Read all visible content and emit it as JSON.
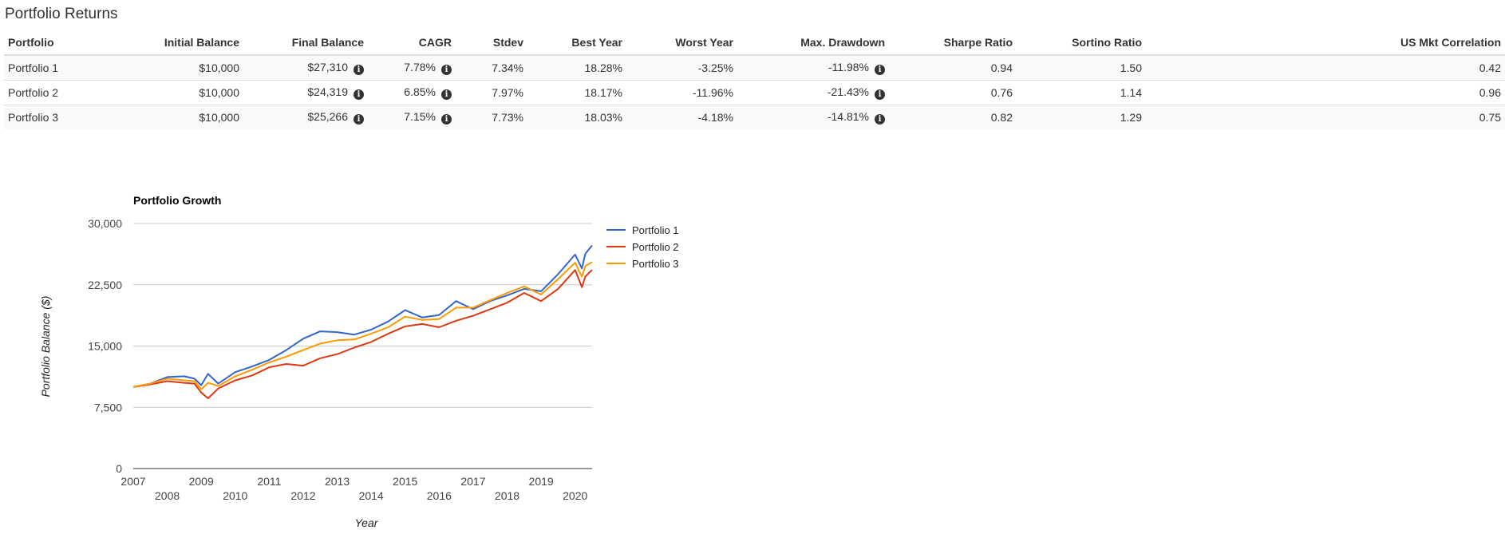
{
  "section_title": "Portfolio Returns",
  "columns": [
    "Portfolio",
    "Initial Balance",
    "Final Balance",
    "CAGR",
    "Stdev",
    "Best Year",
    "Worst Year",
    "Max. Drawdown",
    "Sharpe Ratio",
    "Sortino Ratio",
    "US Mkt Correlation"
  ],
  "rows": [
    {
      "portfolio": "Portfolio 1",
      "initial_balance": "$10,000",
      "final_balance": "$27,310",
      "cagr": "7.78%",
      "stdev": "7.34%",
      "best_year": "18.28%",
      "worst_year": "-3.25%",
      "max_drawdown": "-11.98%",
      "sharpe": "0.94",
      "sortino": "1.50",
      "us_mkt_corr": "0.42"
    },
    {
      "portfolio": "Portfolio 2",
      "initial_balance": "$10,000",
      "final_balance": "$24,319",
      "cagr": "6.85%",
      "stdev": "7.97%",
      "best_year": "18.17%",
      "worst_year": "-11.96%",
      "max_drawdown": "-21.43%",
      "sharpe": "0.76",
      "sortino": "1.14",
      "us_mkt_corr": "0.96"
    },
    {
      "portfolio": "Portfolio 3",
      "initial_balance": "$10,000",
      "final_balance": "$25,266",
      "cagr": "7.15%",
      "stdev": "7.73%",
      "best_year": "18.03%",
      "worst_year": "-4.18%",
      "max_drawdown": "-14.81%",
      "sharpe": "0.82",
      "sortino": "1.29",
      "us_mkt_corr": "0.75"
    }
  ],
  "icons": {
    "info": "info-circle-icon"
  },
  "chart_data": {
    "type": "line",
    "title": "Portfolio Growth",
    "xlabel": "Year",
    "ylabel": "Portfolio Balance ($)",
    "xlim": [
      2007,
      2020.5
    ],
    "ylim": [
      0,
      30000
    ],
    "yticks": [
      0,
      7500,
      15000,
      22500,
      30000
    ],
    "ytick_labels": [
      "0",
      "7,500",
      "15,000",
      "22,500",
      "30,000"
    ],
    "xticks": [
      2007,
      2008,
      2009,
      2010,
      2011,
      2012,
      2013,
      2014,
      2015,
      2016,
      2017,
      2018,
      2019,
      2020
    ],
    "xtick_labels": [
      "2007",
      "2008",
      "2009",
      "2010",
      "2011",
      "2012",
      "2013",
      "2014",
      "2015",
      "2016",
      "2017",
      "2018",
      "2019",
      "2020"
    ],
    "grid": true,
    "legend": "right",
    "series": [
      {
        "name": "Portfolio 1",
        "color": "#3366cc",
        "x": [
          2007.0,
          2007.5,
          2008.0,
          2008.5,
          2008.8,
          2009.0,
          2009.2,
          2009.5,
          2010.0,
          2010.5,
          2011.0,
          2011.5,
          2012.0,
          2012.5,
          2013.0,
          2013.5,
          2014.0,
          2014.5,
          2015.0,
          2015.5,
          2016.0,
          2016.5,
          2017.0,
          2017.5,
          2018.0,
          2018.5,
          2019.0,
          2019.5,
          2020.0,
          2020.2,
          2020.3,
          2020.5
        ],
        "y": [
          10000,
          10400,
          11200,
          11300,
          11000,
          10200,
          11600,
          10400,
          11800,
          12500,
          13300,
          14500,
          15900,
          16800,
          16700,
          16400,
          17000,
          18000,
          19400,
          18500,
          18800,
          20500,
          19500,
          20500,
          21200,
          22000,
          21700,
          23800,
          26200,
          24500,
          26300,
          27310
        ]
      },
      {
        "name": "Portfolio 2",
        "color": "#dc3912",
        "x": [
          2007.0,
          2007.5,
          2008.0,
          2008.5,
          2008.8,
          2009.0,
          2009.2,
          2009.5,
          2010.0,
          2010.5,
          2011.0,
          2011.5,
          2012.0,
          2012.5,
          2013.0,
          2013.5,
          2014.0,
          2014.5,
          2015.0,
          2015.5,
          2016.0,
          2016.5,
          2017.0,
          2017.5,
          2018.0,
          2018.5,
          2019.0,
          2019.5,
          2020.0,
          2020.2,
          2020.3,
          2020.5
        ],
        "y": [
          10000,
          10300,
          10700,
          10500,
          10400,
          9300,
          8600,
          9800,
          10800,
          11400,
          12400,
          12800,
          12600,
          13500,
          14000,
          14800,
          15500,
          16500,
          17400,
          17700,
          17300,
          18100,
          18700,
          19500,
          20300,
          21500,
          20500,
          22000,
          24300,
          22200,
          23500,
          24319
        ]
      },
      {
        "name": "Portfolio 3",
        "color": "#ff9900",
        "x": [
          2007.0,
          2007.5,
          2008.0,
          2008.5,
          2008.8,
          2009.0,
          2009.2,
          2009.5,
          2010.0,
          2010.5,
          2011.0,
          2011.5,
          2012.0,
          2012.5,
          2013.0,
          2013.5,
          2014.0,
          2014.5,
          2015.0,
          2015.5,
          2016.0,
          2016.5,
          2017.0,
          2017.5,
          2018.0,
          2018.5,
          2019.0,
          2019.5,
          2020.0,
          2020.2,
          2020.3,
          2020.5
        ],
        "y": [
          10000,
          10400,
          11000,
          10800,
          10700,
          9700,
          10500,
          10100,
          11300,
          12100,
          13000,
          13700,
          14500,
          15300,
          15700,
          15800,
          16500,
          17300,
          18600,
          18200,
          18300,
          19700,
          19700,
          20600,
          21500,
          22300,
          21300,
          23200,
          25200,
          23500,
          24800,
          25266
        ]
      }
    ]
  }
}
